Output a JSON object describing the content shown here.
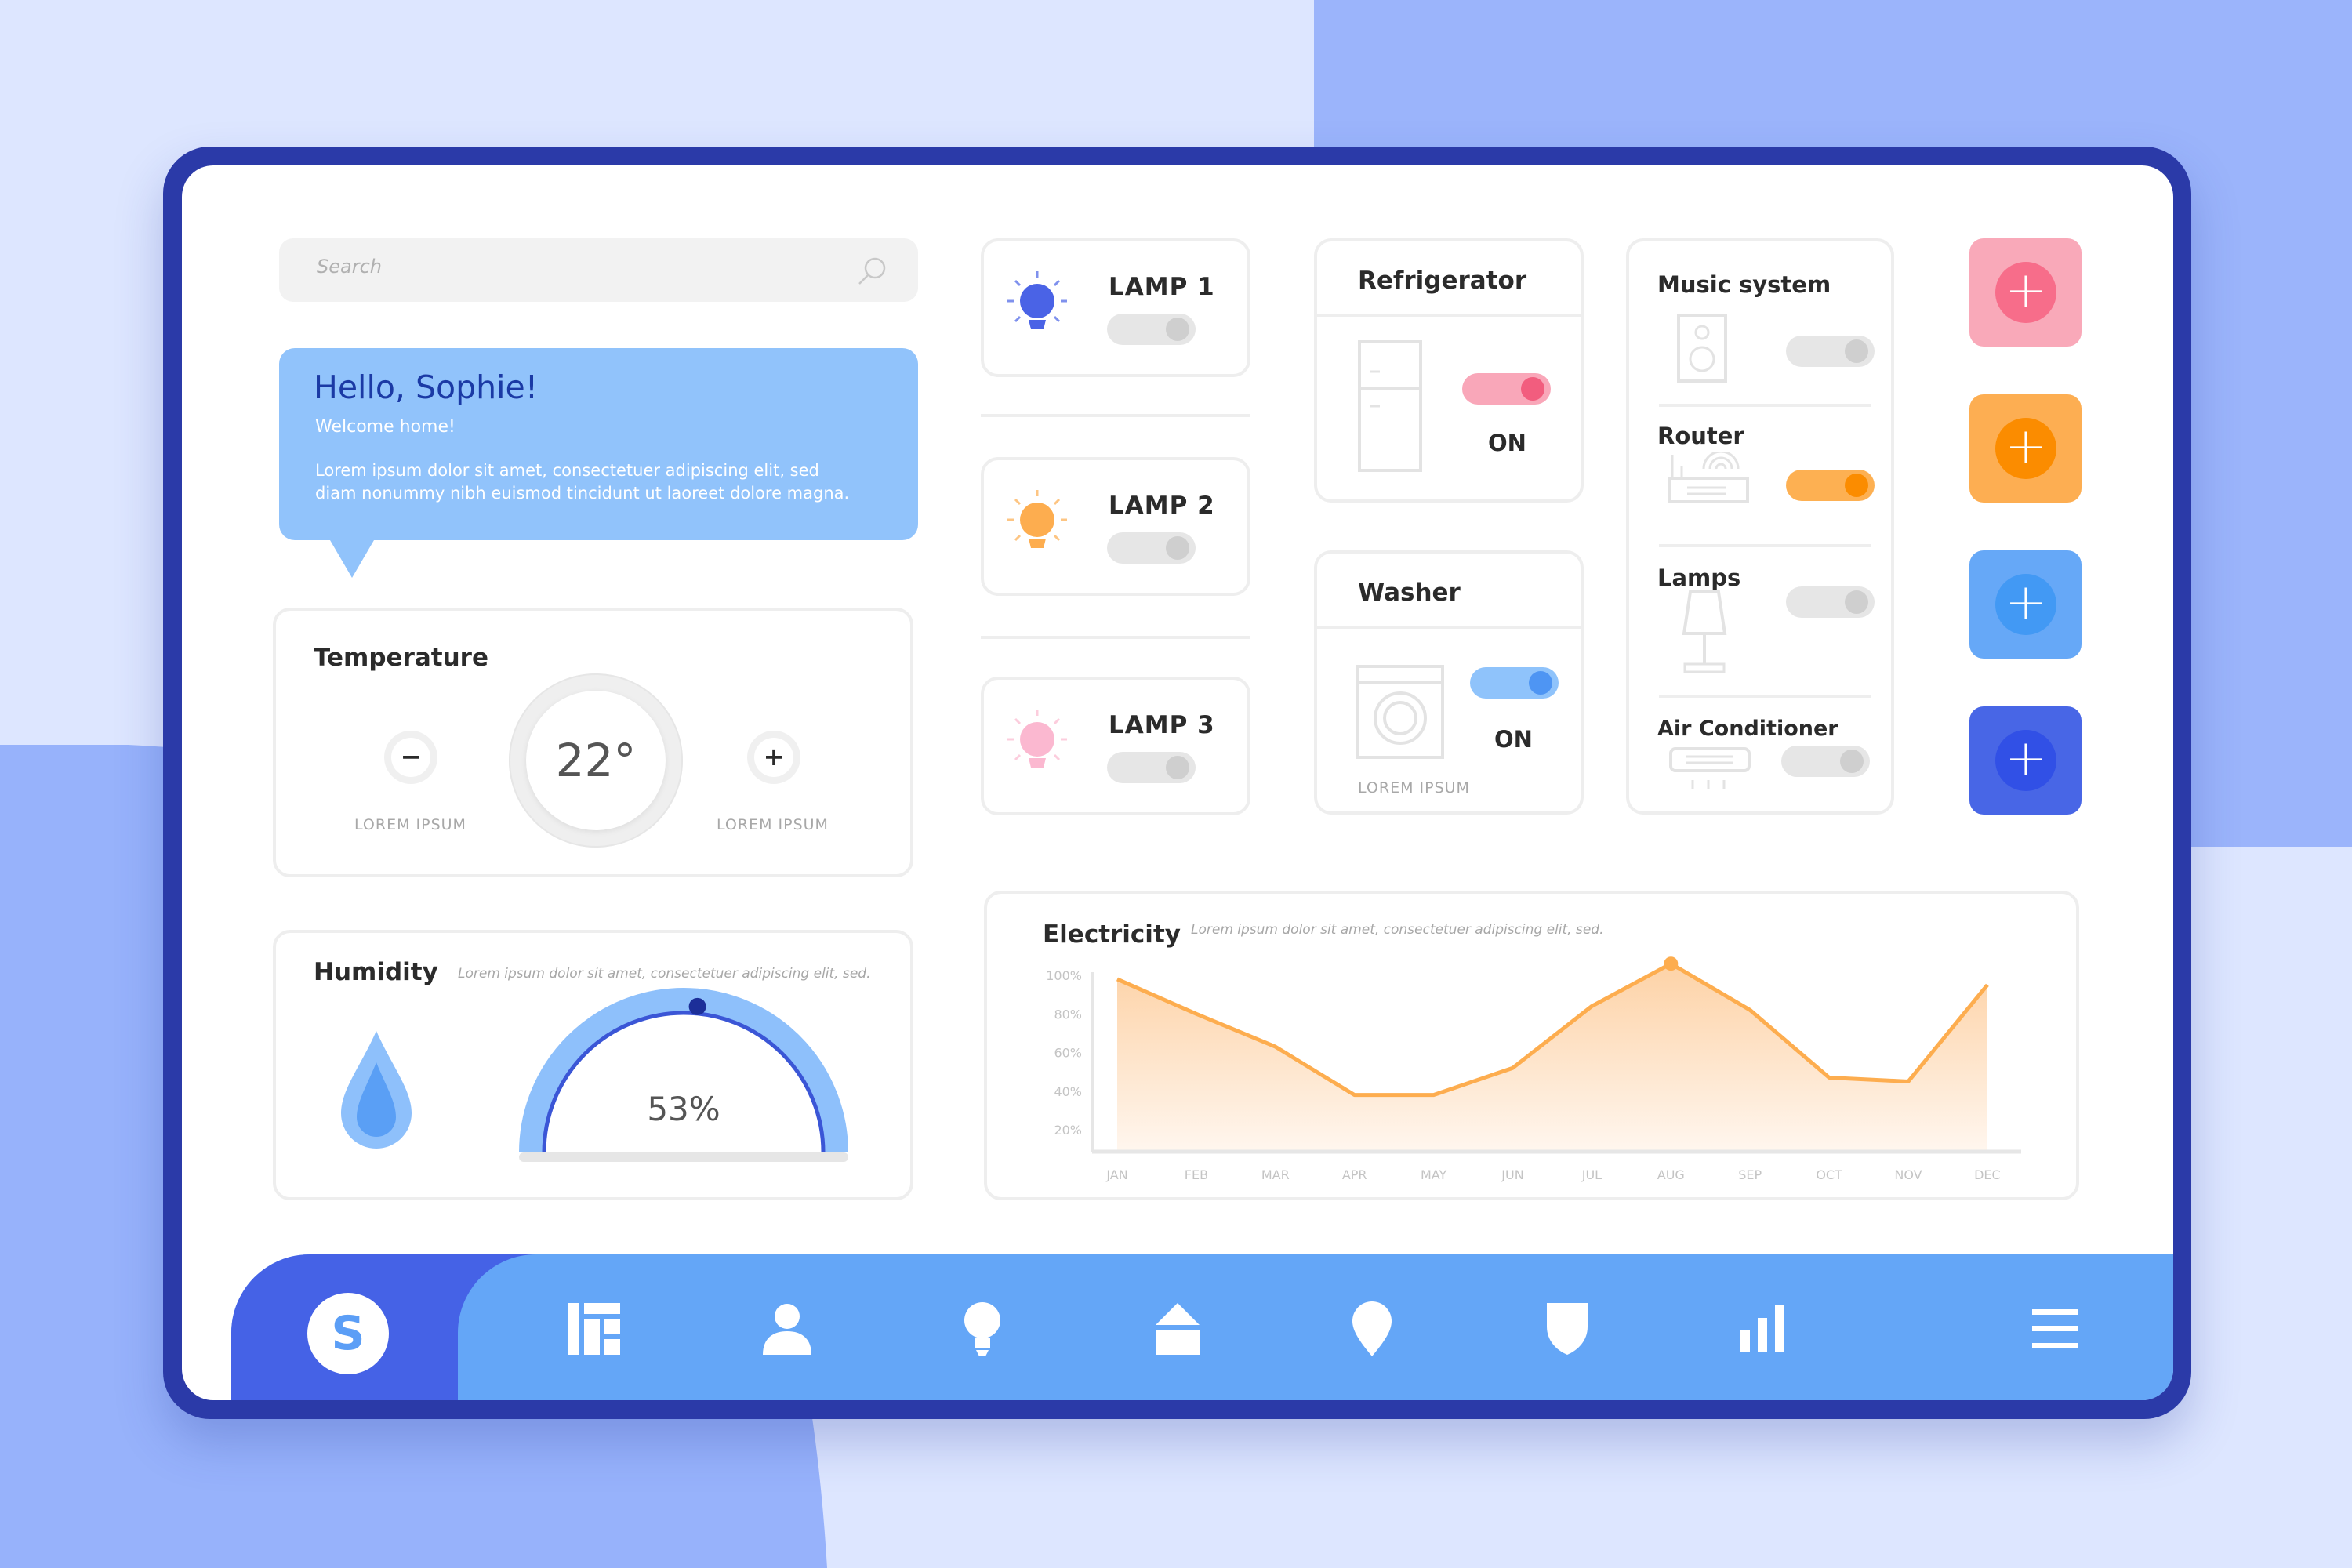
{
  "search": {
    "placeholder": "Search",
    "icon": "search-icon"
  },
  "greeting": {
    "title": "Hello, Sophie!",
    "subtitle": "Welcome home!",
    "body_line1": "Lorem ipsum dolor sit amet, consectetuer adipiscing elit, sed",
    "body_line2": "diam nonummy nibh euismod tincidunt ut laoreet dolore magna."
  },
  "temperature": {
    "title": "Temperature",
    "value": "22°",
    "decrease_label": "LOREM IPSUM",
    "increase_label": "LOREM IPSUM",
    "minus": "−",
    "plus": "+"
  },
  "humidity": {
    "title": "Humidity",
    "subtitle": "Lorem ipsum dolor sit amet, consectetuer adipiscing elit, sed.",
    "value": "53%",
    "level": 53
  },
  "lamps": [
    {
      "label": "LAMP 1",
      "on": false,
      "color": "#4a63e6"
    },
    {
      "label": "LAMP 2",
      "on": false,
      "color": "#fdad4f"
    },
    {
      "label": "LAMP 3",
      "on": false,
      "color": "#fbb8d0"
    }
  ],
  "refrigerator": {
    "title": "Refrigerator",
    "state": "ON",
    "on": true,
    "color": "#f25d7e"
  },
  "washer": {
    "title": "Washer",
    "state": "ON",
    "on": true,
    "caption": "LOREM IPSUM",
    "color": "#4e95f3"
  },
  "devices": [
    {
      "label": "Music system",
      "on": false
    },
    {
      "label": "Router",
      "on": true,
      "color": "#fb8c00"
    },
    {
      "label": "Lamps",
      "on": false
    },
    {
      "label": "Air Conditioner",
      "on": false
    }
  ],
  "add_buttons": [
    {
      "color": "#f9a9b9",
      "accent": "#f76d8a",
      "label": "+"
    },
    {
      "color": "#fdae52",
      "accent": "#fb8c00",
      "label": "+"
    },
    {
      "color": "#66a8f7",
      "accent": "#4299f4",
      "label": "+"
    },
    {
      "color": "#4866e6",
      "accent": "#3150e6",
      "label": "+"
    }
  ],
  "electricity": {
    "title": "Electricity",
    "subtitle": "Lorem ipsum dolor sit amet, consectetuer adipiscing elit, sed."
  },
  "chart_data": {
    "type": "area",
    "title": "Electricity",
    "categories": [
      "JAN",
      "FEB",
      "MAR",
      "APR",
      "MAY",
      "JUN",
      "JUL",
      "AUG",
      "SEP",
      "OCT",
      "NOV",
      "DEC"
    ],
    "values": [
      98,
      80,
      63,
      38,
      38,
      52,
      84,
      106,
      82,
      47,
      45,
      95
    ],
    "y_ticks": [
      "100%",
      "80%",
      "60%",
      "40%",
      "20%"
    ],
    "ylim": [
      10,
      110
    ],
    "highlight": "AUG",
    "color": "#fdad4f",
    "grid": false
  },
  "bottom_nav": {
    "avatar_letter": "S",
    "items": [
      "dashboard-icon",
      "user-icon",
      "bulb-icon",
      "home-icon",
      "location-icon",
      "shield-icon",
      "bar-chart-icon",
      "menu-icon"
    ]
  }
}
